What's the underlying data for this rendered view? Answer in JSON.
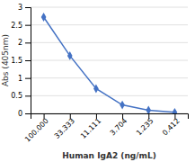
{
  "chart_data": {
    "type": "line",
    "categories": [
      "100.000",
      "33.333",
      "11.111",
      "3.704",
      "1.235",
      "0.412"
    ],
    "values": [
      2.72,
      1.63,
      0.7,
      0.24,
      0.09,
      0.03
    ],
    "xlabel": "Human IgA2 (ng/mL)",
    "ylabel": "Abs (405nm)",
    "ylim": [
      0,
      3
    ],
    "yticks": [
      0,
      0.5,
      1,
      1.5,
      2,
      2.5,
      3
    ],
    "color": "#4472C4",
    "marker": "diamond",
    "grid": true
  }
}
